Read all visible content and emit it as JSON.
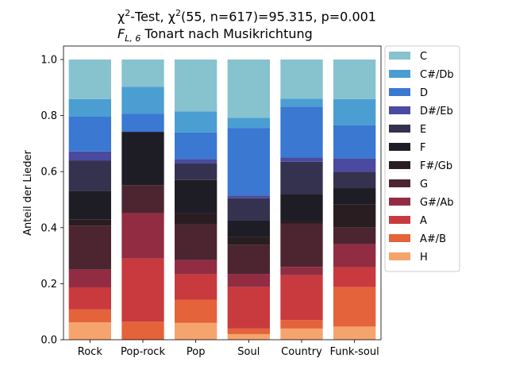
{
  "chart_data": {
    "type": "bar",
    "stacked": true,
    "title_line1_parts": {
      "chi_sym": "χ",
      "chi_sup": "2",
      "test_text": "-Test, ",
      "chi_sym2": "χ",
      "chi_sup2": "2",
      "stat_text": "(55, n=617)=95.315, p=0.001"
    },
    "title_line2_parts": {
      "f_sym": "F",
      "f_sub": "L, 6",
      "rest": " Tonart nach Musikrichtung"
    },
    "ylabel": "Anteil der Lieder",
    "xlabel": "",
    "ylim": [
      0,
      1.0
    ],
    "yticks": [
      "0.0",
      "0.2",
      "0.4",
      "0.6",
      "0.8",
      "1.0"
    ],
    "categories": [
      "Rock",
      "Pop-rock",
      "Pop",
      "Soul",
      "Country",
      "Funk-soul"
    ],
    "series": [
      {
        "name": "H",
        "color": "#f6a46e",
        "values": [
          0.062,
          0.0,
          0.06,
          0.02,
          0.04,
          0.047
        ]
      },
      {
        "name": "A#/B",
        "color": "#e5633a",
        "values": [
          0.046,
          0.065,
          0.083,
          0.02,
          0.03,
          0.141
        ]
      },
      {
        "name": "A",
        "color": "#c93a3e",
        "values": [
          0.079,
          0.225,
          0.091,
          0.148,
          0.16,
          0.071
        ]
      },
      {
        "name": "G#/Ab",
        "color": "#922c43",
        "values": [
          0.063,
          0.162,
          0.05,
          0.047,
          0.03,
          0.082
        ]
      },
      {
        "name": "G",
        "color": "#4c2530",
        "values": [
          0.157,
          0.1,
          0.128,
          0.103,
          0.155,
          0.059
        ]
      },
      {
        "name": "F#/Gb",
        "color": "#2a1d21",
        "values": [
          0.023,
          0.0,
          0.04,
          0.03,
          0.01,
          0.082
        ]
      },
      {
        "name": "F",
        "color": "#1e1d26",
        "values": [
          0.102,
          0.19,
          0.118,
          0.057,
          0.095,
          0.059
        ]
      },
      {
        "name": "E",
        "color": "#34324f",
        "values": [
          0.108,
          0.0,
          0.06,
          0.08,
          0.115,
          0.059
        ]
      },
      {
        "name": "D#/Eb",
        "color": "#4a4aa0",
        "values": [
          0.032,
          0.0,
          0.015,
          0.01,
          0.015,
          0.047
        ]
      },
      {
        "name": "D",
        "color": "#3a78d2",
        "values": [
          0.124,
          0.065,
          0.095,
          0.24,
          0.182,
          0.118
        ]
      },
      {
        "name": "C#/Db",
        "color": "#4a9ed2",
        "values": [
          0.063,
          0.096,
          0.075,
          0.037,
          0.028,
          0.094
        ]
      },
      {
        "name": "C",
        "color": "#87c2cf",
        "values": [
          0.141,
          0.097,
          0.185,
          0.208,
          0.14,
          0.141
        ]
      }
    ],
    "legend": {
      "placement": "outside-right",
      "order": [
        "C",
        "C#/Db",
        "D",
        "D#/Eb",
        "E",
        "F",
        "F#/Gb",
        "G",
        "G#/Ab",
        "A",
        "A#/B",
        "H"
      ]
    },
    "grid": false
  }
}
